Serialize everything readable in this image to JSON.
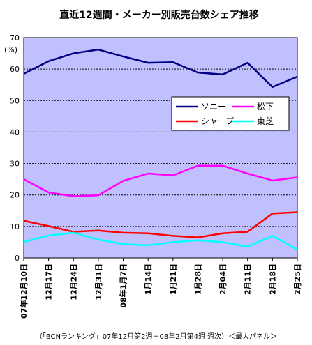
{
  "chart_data": {
    "type": "line",
    "title": "直近12週間・メーカー別販売台数シェア推移",
    "ylabel": "(%)",
    "ylim": [
      0,
      70
    ],
    "yticks": [
      0,
      10,
      20,
      30,
      40,
      50,
      60,
      70
    ],
    "grid": true,
    "legend_placement": "right",
    "categories": [
      "07年12月10日",
      "12月17日",
      "12月24日",
      "12月31日",
      "08年1月7日",
      "1月14日",
      "1月21日",
      "1月28日",
      "2月04日",
      "2月11日",
      "2月18日",
      "2月25日"
    ],
    "series": [
      {
        "name": "ソニー",
        "color": "#000080",
        "values": [
          58.5,
          62.5,
          65,
          66.2,
          64,
          62,
          62.2,
          58.9,
          58.3,
          62,
          54.3,
          57.6
        ]
      },
      {
        "name": "松下",
        "color": "#ff00ff",
        "values": [
          25,
          20.8,
          19.6,
          19.9,
          24.5,
          26.8,
          26.2,
          29.3,
          29.3,
          26.8,
          24.6,
          25.6
        ]
      },
      {
        "name": "シャープ",
        "color": "#ff0000",
        "values": [
          11.8,
          10.1,
          8.3,
          8.7,
          8,
          7.8,
          7,
          6.5,
          7.8,
          8.3,
          14.1,
          14.5
        ]
      },
      {
        "name": "東芝",
        "color": "#00ffff",
        "values": [
          5.1,
          7.1,
          8,
          5.8,
          4.4,
          4,
          5,
          5.6,
          5,
          3.6,
          7,
          2.7
        ]
      }
    ],
    "footer": "（「BCNランキング」07年12月第2週－08年2月第4週 週次）＜最大パネル＞"
  },
  "colors": {
    "plot_background": "#c0c0ff",
    "grid": "#000000",
    "axis": "#000000"
  }
}
